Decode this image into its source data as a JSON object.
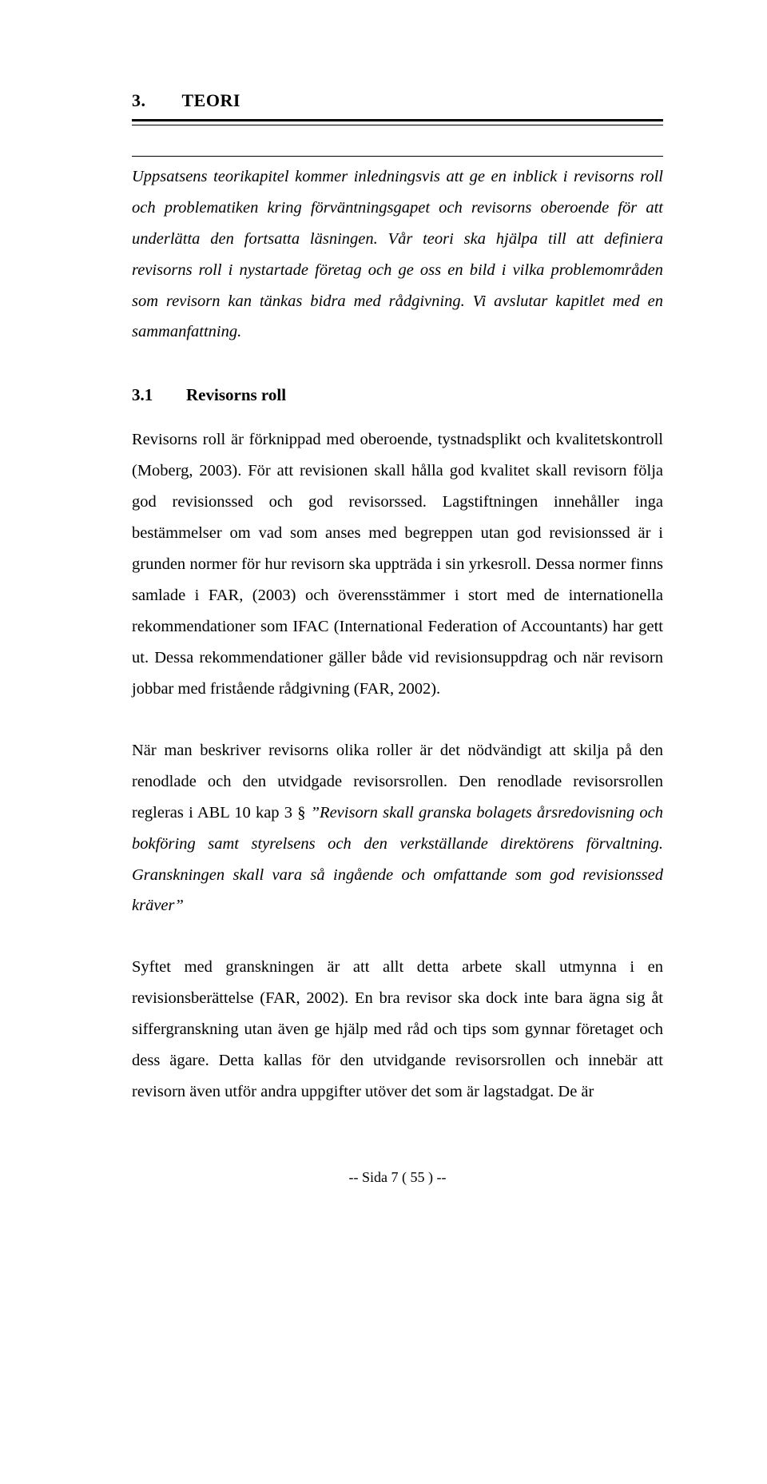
{
  "heading1": "3.  TEORI",
  "introParagraph": "Uppsatsens teorikapitel kommer inledningsvis att ge en inblick i revisorns roll och problematiken kring förväntningsgapet och revisorns oberoende för att underlätta den fortsatta läsningen. Vår teori ska hjälpa till att definiera revisorns roll i nystartade företag och ge oss en bild i vilka problemområden som revisorn kan tänkas bidra med rådgivning. Vi avslutar kapitlet med en sammanfattning.",
  "heading2_num": "3.1",
  "heading2_text": "Revisorns roll",
  "p1": "Revisorns roll är förknippad med oberoende, tystnadsplikt och kvalitetskontroll (Moberg, 2003). För att revisionen skall hålla god kvalitet skall revisorn följa god revisionssed och god revisorssed. Lagstiftningen innehåller inga bestämmelser om vad som anses med begreppen utan god revisionssed är i grunden normer för hur revisorn ska uppträda i sin yrkesroll. Dessa normer finns samlade i FAR, (2003) och överensstämmer i stort med de internationella rekommendationer som IFAC (International Federation of Accountants) har gett ut. Dessa rekommendationer gäller både vid revisionsuppdrag och när revisorn jobbar med fristående rådgivning (FAR, 2002).",
  "p2_a": "När man beskriver revisorns olika roller är det nödvändigt att skilja på den renodlade och den utvidgade revisorsrollen. Den renodlade revisorsrollen regleras i ABL 10 kap 3 § ",
  "p2_b": "”Revisorn skall granska bolagets årsredovisning och bokföring samt styrelsens och den verkställande direktörens förvaltning. Granskningen skall vara så ingående och omfattande som god revisionssed kräver”",
  "p3": "Syftet med granskningen är att allt detta arbete skall utmynna i en revisionsberättelse (FAR, 2002). En bra revisor ska dock inte bara ägna sig åt siffergranskning utan även ge hjälp med råd och tips som gynnar företaget och dess ägare. Detta kallas för den utvidgande revisorsrollen och innebär att revisorn även utför andra uppgifter utöver det som är lagstadgat. De är",
  "footer": "--  Sida  7   ( 55 )  --"
}
